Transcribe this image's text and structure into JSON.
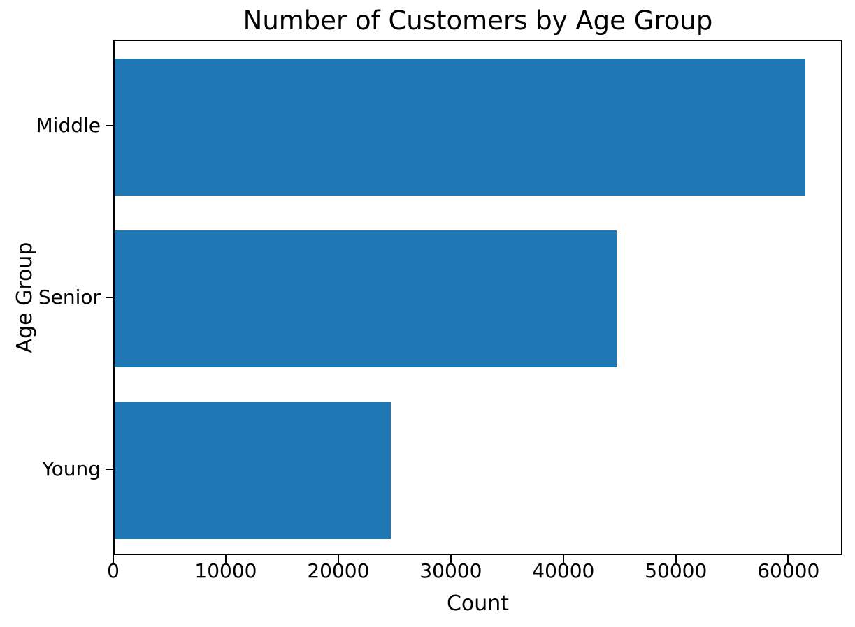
{
  "chart_data": {
    "type": "bar",
    "orientation": "horizontal",
    "title": "Number of Customers by Age Group",
    "xlabel": "Count",
    "ylabel": "Age Group",
    "categories": [
      "Middle",
      "Senior",
      "Young"
    ],
    "values": [
      61600,
      44800,
      24650
    ],
    "xticks": [
      0,
      10000,
      20000,
      30000,
      40000,
      50000,
      60000
    ],
    "xlim": [
      0,
      64800
    ],
    "bar_color": "#1f77b4",
    "text_color": "#000000",
    "background_color": "#ffffff",
    "grid": false,
    "legend": "none",
    "bar_fraction_of_band": 0.8
  }
}
